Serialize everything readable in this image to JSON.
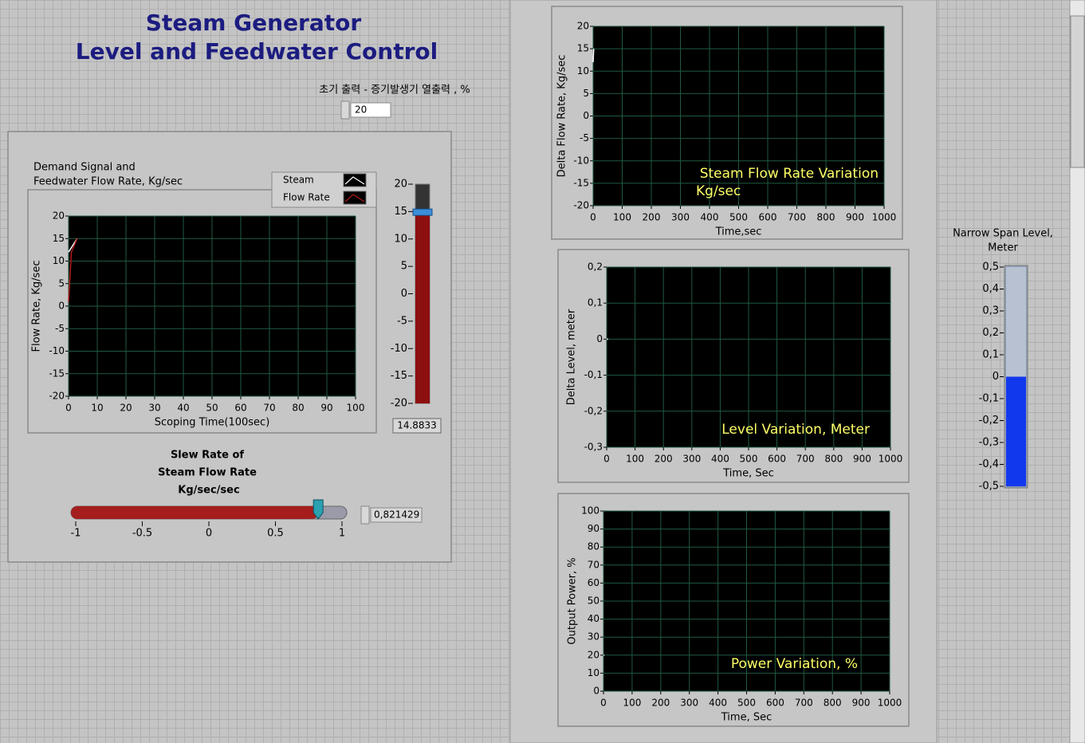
{
  "header": {
    "title_line1": "Steam Generator",
    "title_line2": "Level and Feedwater Control"
  },
  "initial_power": {
    "label": "초기 출력 - 증기발생기 열출력 , %",
    "value": 20
  },
  "demand_chart": {
    "type": "line",
    "title_line1": "Demand Signal  and",
    "title_line2": "Feedwater Flow Rate, Kg/sec",
    "y_label": "Flow Rate, Kg/sec",
    "x_label": "Scoping Time(100sec)",
    "xlim": [
      0,
      100
    ],
    "xticks": [
      0,
      10,
      20,
      30,
      40,
      50,
      60,
      70,
      80,
      90,
      100
    ],
    "ylim": [
      -20,
      20
    ],
    "yticks": [
      -20,
      -15,
      -10,
      -5,
      0,
      5,
      10,
      15,
      20
    ],
    "series": [
      {
        "name": "Steam",
        "color": "#ffffff",
        "x": [
          0,
          3
        ],
        "values": [
          12,
          15
        ]
      },
      {
        "name": "Flow Rate",
        "color": "#b01818",
        "x": [
          0,
          1,
          3
        ],
        "values": [
          1,
          12,
          15
        ]
      }
    ]
  },
  "demand_slider": {
    "ylim": [
      -20,
      20
    ],
    "yticks": [
      -20,
      -15,
      -10,
      -5,
      0,
      5,
      10,
      15,
      20
    ],
    "value": 14.8833
  },
  "slew_rate": {
    "label_line1": "Slew Rate of",
    "label_line2": "Steam Flow Rate",
    "label_line3": "Kg/sec/sec",
    "xlim": [
      -1,
      1
    ],
    "xticks": [
      -1,
      -0.5,
      0,
      0.5,
      1
    ],
    "value": {
      "value": 0.821429,
      "label": "0,821429"
    }
  },
  "steam_flow_chart": {
    "type": "line",
    "y_label": "Delta Flow Rate, Kg/sec",
    "x_label": "Time,sec",
    "annotation": [
      "Steam Flow Rate Variation",
      "Kg/sec"
    ],
    "xlim": [
      0,
      1000
    ],
    "xticks": [
      0,
      100,
      200,
      300,
      400,
      500,
      600,
      700,
      800,
      900,
      1000
    ],
    "ylim": [
      -20,
      20
    ],
    "yticks": [
      -20,
      -15,
      -10,
      -5,
      0,
      5,
      10,
      15,
      20
    ],
    "series": [
      {
        "color": "#ffffff",
        "x": [
          0,
          2
        ],
        "values": [
          12,
          15
        ]
      }
    ]
  },
  "level_chart": {
    "type": "line",
    "y_label": "Delta Level, meter",
    "x_label": "Time, Sec",
    "annotation": [
      "Level Variation, Meter"
    ],
    "xlim": [
      0,
      1000
    ],
    "xticks": [
      0,
      100,
      200,
      300,
      400,
      500,
      600,
      700,
      800,
      900,
      1000
    ],
    "ylim": [
      -0.3,
      0.2
    ],
    "yticks": [
      {
        "value": -0.3,
        "label": "-0,3"
      },
      {
        "value": -0.2,
        "label": "-0,2"
      },
      {
        "value": -0.1,
        "label": "-0,1"
      },
      0,
      {
        "value": 0.1,
        "label": "0,1"
      },
      {
        "value": 0.2,
        "label": "0,2"
      }
    ],
    "series": [
      {
        "color": "#ffffff",
        "x": [
          0,
          5
        ],
        "values": [
          0,
          0
        ]
      }
    ]
  },
  "power_chart": {
    "type": "line",
    "y_label": "Output Power, %",
    "x_label": "Time, Sec",
    "annotation": [
      "Power Variation, %"
    ],
    "xlim": [
      0,
      1000
    ],
    "xticks": [
      0,
      100,
      200,
      300,
      400,
      500,
      600,
      700,
      800,
      900,
      1000
    ],
    "ylim": [
      0,
      100
    ],
    "yticks": [
      0,
      10,
      20,
      30,
      40,
      50,
      60,
      70,
      80,
      90,
      100
    ],
    "series": [
      {
        "color": "#ffffff",
        "x": [
          0,
          3
        ],
        "values": [
          20,
          20
        ]
      }
    ]
  },
  "level_indicator": {
    "label_line1": "Narrow Span Level,",
    "label_line2": "Meter",
    "ylim": [
      -0.5,
      0.5
    ],
    "yticks": [
      {
        "value": -0.5,
        "label": "-0,5"
      },
      {
        "value": -0.4,
        "label": "-0,4"
      },
      {
        "value": -0.3,
        "label": "-0,3"
      },
      {
        "value": -0.2,
        "label": "-0,2"
      },
      {
        "value": -0.1,
        "label": "-0,1"
      },
      0,
      {
        "value": 0.1,
        "label": "0,1"
      },
      {
        "value": 0.2,
        "label": "0,2"
      },
      {
        "value": 0.3,
        "label": "0,3"
      },
      {
        "value": 0.4,
        "label": "0,4"
      },
      {
        "value": 0.5,
        "label": "0,5"
      }
    ],
    "value": 0
  }
}
